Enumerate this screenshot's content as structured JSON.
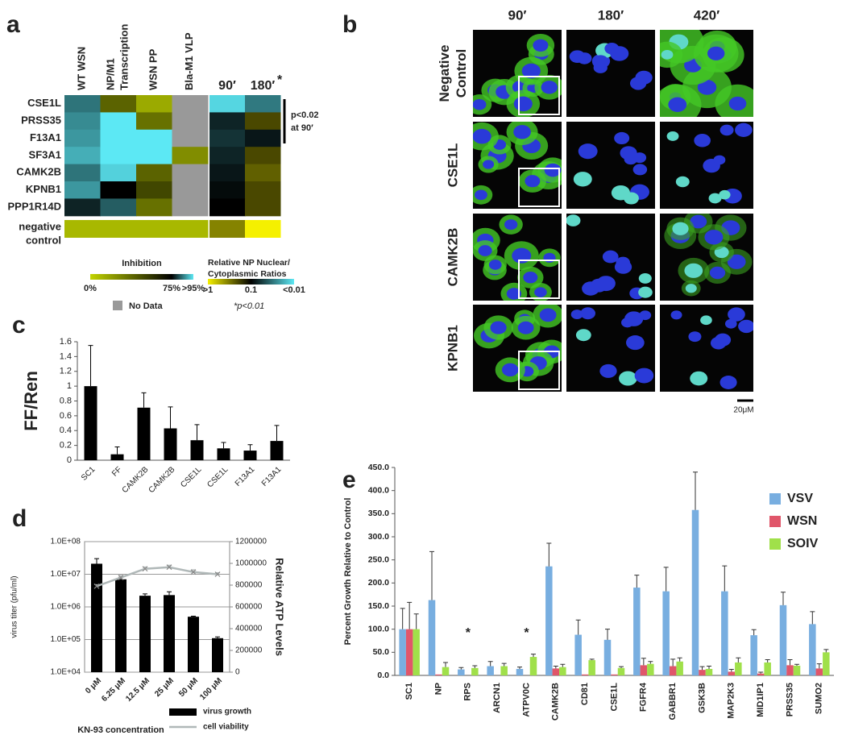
{
  "chart_data": [
    {
      "type": "heatmap",
      "panel_label": "a",
      "columns": [
        [
          "WT WSN"
        ],
        [
          "NP/M1",
          "Transcription"
        ],
        [
          "WSN PP"
        ],
        [
          "Bla-M1 VLP"
        ]
      ],
      "ratio_columns": [
        "90′",
        "180′"
      ],
      "ratio_marker": "*",
      "rows": [
        "CSE1L",
        "PRSS35",
        "F13A1",
        "SF3A1",
        "CAMK2B",
        "KPNB1",
        "PPP1R14D"
      ],
      "values": [
        [
          85,
          40,
          15,
          null
        ],
        [
          87,
          98,
          35,
          null
        ],
        [
          88,
          98,
          95,
          null
        ],
        [
          90,
          98,
          97,
          25
        ],
        [
          85,
          93,
          40,
          null
        ],
        [
          88,
          75,
          50,
          null
        ],
        [
          78,
          83,
          35,
          null
        ]
      ],
      "ratio_values": [
        [
          0.012,
          0.03
        ],
        [
          0.07,
          0.2
        ],
        [
          0.06,
          0.08
        ],
        [
          0.07,
          0.2
        ],
        [
          0.08,
          0.25
        ],
        [
          0.09,
          0.2
        ],
        [
          0.1,
          0.2
        ]
      ],
      "control_row": [
        "negative",
        "control"
      ],
      "control_values": [
        10,
        10,
        10,
        10
      ],
      "control_ratio_values": [
        0.35,
        1.2
      ],
      "bracket_label": [
        "p<0.02",
        "at 90′"
      ],
      "inhibition_legend": {
        "title": "Inhibition",
        "stops": [
          {
            "value": 0,
            "color": "#c2d400"
          },
          {
            "value": 75,
            "color": "#000000"
          },
          {
            "value": 95,
            "color": "#5ce8f4"
          }
        ],
        "ticks": [
          {
            "value": 0,
            "label": "0%"
          },
          {
            "value": 75,
            "label": "75%"
          },
          {
            "value": 95,
            "label": ">95%"
          }
        ]
      },
      "ratio_legend": {
        "title": [
          "Relative NP Nuclear/",
          "Cytoplasmic Ratios"
        ],
        "log_scale": true,
        "stops": [
          {
            "value": 1,
            "color": "#f5f000"
          },
          {
            "value": 0.1,
            "color": "#000000"
          },
          {
            "value": 0.01,
            "color": "#5ce8f4"
          }
        ],
        "ticks": [
          {
            "value": 1,
            "label": ">1"
          },
          {
            "value": 0.1,
            "label": "0.1"
          },
          {
            "value": 0.01,
            "label": "<0.01"
          }
        ]
      },
      "no_data": {
        "label": "No Data",
        "color": "#999999"
      },
      "footnote": "*p<0.01"
    },
    {
      "type": "image-grid",
      "panel_label": "b",
      "columns": [
        "90′",
        "180′",
        "420′"
      ],
      "rows": [
        [
          "Negative",
          "Control"
        ],
        [
          "CSE1L"
        ],
        [
          "CAMK2B"
        ],
        [
          "KPNB1"
        ]
      ],
      "scale_bar": "20μM"
    },
    {
      "type": "bar",
      "panel_label": "c",
      "y_label": "FF/Ren",
      "categories": [
        "SC1",
        "FF",
        "CAMK2B",
        "CAMK2B",
        "CSE1L",
        "CSE1L",
        "F13A1",
        "F13A1"
      ],
      "values": [
        1.0,
        0.08,
        0.71,
        0.43,
        0.27,
        0.16,
        0.13,
        0.26
      ],
      "errors": [
        0.55,
        0.1,
        0.2,
        0.29,
        0.21,
        0.08,
        0.08,
        0.21
      ],
      "color": "#000000",
      "ylim": [
        0,
        1.6
      ],
      "yticks": [
        0,
        0.2,
        0.4,
        0.6,
        0.8,
        1,
        1.2,
        1.4,
        1.6
      ]
    },
    {
      "type": "combo",
      "panel_label": "d",
      "x_label": "KN-93 concentration",
      "y_label": "virus titer (pfu/ml)",
      "y2_label": "Relative ATP Levels",
      "categories": [
        "0 μM",
        "6.25 μM",
        "12.5 μM",
        "25 μM",
        "50 μM",
        "100 μM"
      ],
      "log_scale": true,
      "grid": true,
      "ylim": [
        10000,
        100000000
      ],
      "yticks": [
        {
          "value": 10000,
          "label": "1.0E+04"
        },
        {
          "value": 100000,
          "label": "1.0E+05"
        },
        {
          "value": 1000000,
          "label": "1.0E+06"
        },
        {
          "value": 10000000,
          "label": "1.0E+07"
        },
        {
          "value": 100000000,
          "label": "1.0E+08"
        }
      ],
      "y2lim": [
        0,
        1200000
      ],
      "y2ticks": [
        0,
        200000,
        400000,
        600000,
        800000,
        1000000,
        1200000
      ],
      "series": [
        {
          "name": "virus growth",
          "type": "bar",
          "color": "#000000",
          "values": [
            21000000,
            7000000,
            2200000,
            2300000,
            500000,
            110000
          ],
          "errors": [
            9000000,
            1000000,
            300000,
            600000,
            20000,
            10000
          ]
        },
        {
          "name": "cell viability",
          "type": "line",
          "axis": "y2",
          "color": "#b0b8b8",
          "values": [
            790000,
            870000,
            950000,
            965000,
            920000,
            900000
          ],
          "errors": [
            15000,
            20000,
            18000,
            18000,
            22000,
            15000
          ]
        }
      ]
    },
    {
      "type": "grouped-bar",
      "panel_label": "e",
      "y_label": "Percent Growth Relative to Control",
      "legend": "top-right",
      "categories": [
        "SC1",
        "NP",
        "RPS",
        "ARCN1",
        "ATPV0C",
        "CAMK2B",
        "CD81",
        "CSE1L",
        "FGFR4",
        "GABBR1",
        "GSK3B",
        "MAP2K3",
        "MID1IP1",
        "PRSS35",
        "SUMO2"
      ],
      "ylim": [
        0,
        450
      ],
      "yticks": [
        {
          "value": 0,
          "label": "0.0"
        },
        {
          "value": 50,
          "label": "50.0"
        },
        {
          "value": 100,
          "label": "100.0"
        },
        {
          "value": 150,
          "label": "150.0"
        },
        {
          "value": 200,
          "label": "200.0"
        },
        {
          "value": 250,
          "label": "250.0"
        },
        {
          "value": 300,
          "label": "300.0"
        },
        {
          "value": 350,
          "label": "350.0"
        },
        {
          "value": 400,
          "label": "400.0"
        },
        {
          "value": 450,
          "label": "450.0"
        }
      ],
      "series": [
        {
          "name": "VSV",
          "color": "#78aee0",
          "values": [
            100,
            163,
            13,
            20,
            14,
            236,
            88,
            77,
            190,
            182,
            358,
            182,
            87,
            152,
            111
          ],
          "errors": [
            45,
            105,
            4,
            10,
            4,
            50,
            32,
            23,
            27,
            52,
            82,
            55,
            12,
            28,
            27
          ]
        },
        {
          "name": "WSN",
          "color": "#e0566a",
          "values": [
            100,
            2,
            0,
            0,
            0,
            15,
            2,
            2,
            22,
            20,
            12,
            8,
            4,
            22,
            15
          ],
          "errors": [
            58,
            0,
            0,
            0,
            0,
            5,
            0,
            0,
            15,
            15,
            7,
            5,
            3,
            12,
            10
          ]
        },
        {
          "name": "SOIV",
          "color": "#a0e04a",
          "values": [
            100,
            18,
            16,
            20,
            40,
            18,
            33,
            16,
            25,
            30,
            14,
            28,
            28,
            21,
            50
          ],
          "errors": [
            33,
            10,
            5,
            6,
            6,
            6,
            2,
            3,
            5,
            8,
            6,
            10,
            6,
            3,
            6
          ]
        }
      ],
      "annotations": [
        {
          "text": "*",
          "category": "RPS"
        },
        {
          "text": "*",
          "category": "ATPV0C"
        }
      ]
    }
  ]
}
